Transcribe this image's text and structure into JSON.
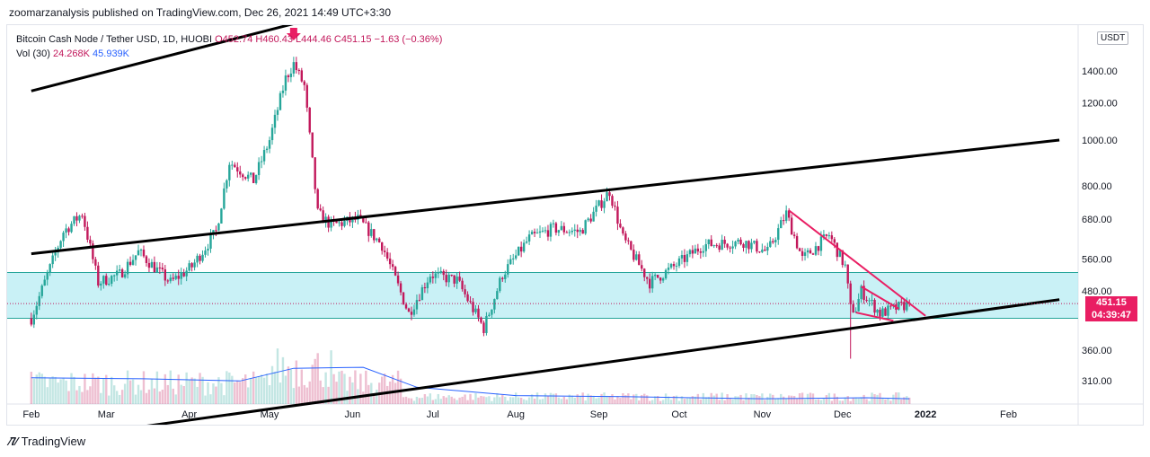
{
  "header": {
    "published": "zoomarzanalysis published on TradingView.com, Dec 26, 2021 14:49 UTC+3:30"
  },
  "legend": {
    "symbol": "Bitcoin Cash Node / Tether USD, 1D, HUOBI",
    "open": "O452.74",
    "high": "H460.43",
    "low": "L444.46",
    "close": "C451.15",
    "change": "−1.63 (−0.36%)",
    "vol_label": "Vol (30)",
    "vol_value": "24.268K",
    "vol_ma": "45.939K"
  },
  "currency": "USDT",
  "last_price": "451.15",
  "countdown": "04:39:47",
  "footer": {
    "brand": "TradingView"
  },
  "colors": {
    "up": "#26a69a",
    "down": "#c2185b",
    "zone": "#b2ebf2",
    "zone_border": "#26a69a",
    "trendline": "#e91e63",
    "vol_ma": "#2962ff",
    "label_bg": "#e91e63"
  },
  "chart_data": {
    "type": "candlestick",
    "symbol": "Bitcoin Cash Node / Tether USD",
    "timeframe": "1D",
    "exchange": "HUOBI",
    "y_scale": "log",
    "y_ticks": [
      "1400.00",
      "1200.00",
      "1000.00",
      "800.00",
      "680.00",
      "560.00",
      "480.00",
      "360.00",
      "310.00"
    ],
    "x_ticks": [
      "Feb",
      "Mar",
      "Apr",
      "May",
      "Jun",
      "Jul",
      "Aug",
      "Sep",
      "Oct",
      "Nov",
      "Dec",
      "2022",
      "Feb"
    ],
    "price_path": [
      {
        "date": "2021-02-01",
        "price": 420
      },
      {
        "date": "2021-02-13",
        "price": 640
      },
      {
        "date": "2021-02-20",
        "price": 700
      },
      {
        "date": "2021-02-26",
        "price": 500
      },
      {
        "date": "2021-03-06",
        "price": 520
      },
      {
        "date": "2021-03-13",
        "price": 580
      },
      {
        "date": "2021-03-25",
        "price": 500
      },
      {
        "date": "2021-04-02",
        "price": 540
      },
      {
        "date": "2021-04-11",
        "price": 640
      },
      {
        "date": "2021-04-16",
        "price": 900
      },
      {
        "date": "2021-04-25",
        "price": 820
      },
      {
        "date": "2021-05-01",
        "price": 1000
      },
      {
        "date": "2021-05-07",
        "price": 1350
      },
      {
        "date": "2021-05-10",
        "price": 1450
      },
      {
        "date": "2021-05-14",
        "price": 1300
      },
      {
        "date": "2021-05-19",
        "price": 700
      },
      {
        "date": "2021-05-24",
        "price": 660
      },
      {
        "date": "2021-06-03",
        "price": 680
      },
      {
        "date": "2021-06-12",
        "price": 600
      },
      {
        "date": "2021-06-22",
        "price": 430
      },
      {
        "date": "2021-06-30",
        "price": 520
      },
      {
        "date": "2021-07-10",
        "price": 505
      },
      {
        "date": "2021-07-20",
        "price": 400
      },
      {
        "date": "2021-07-27",
        "price": 520
      },
      {
        "date": "2021-08-06",
        "price": 620
      },
      {
        "date": "2021-08-15",
        "price": 650
      },
      {
        "date": "2021-08-25",
        "price": 640
      },
      {
        "date": "2021-09-05",
        "price": 780
      },
      {
        "date": "2021-09-10",
        "price": 620
      },
      {
        "date": "2021-09-20",
        "price": 500
      },
      {
        "date": "2021-09-29",
        "price": 540
      },
      {
        "date": "2021-10-10",
        "price": 600
      },
      {
        "date": "2021-10-25",
        "price": 610
      },
      {
        "date": "2021-11-03",
        "price": 580
      },
      {
        "date": "2021-11-10",
        "price": 700
      },
      {
        "date": "2021-11-16",
        "price": 560
      },
      {
        "date": "2021-11-26",
        "price": 630
      },
      {
        "date": "2021-12-02",
        "price": 540
      },
      {
        "date": "2021-12-04",
        "price": 440
      },
      {
        "date": "2021-12-06",
        "price": 440
      },
      {
        "date": "2021-12-08",
        "price": 480
      },
      {
        "date": "2021-12-15",
        "price": 430
      },
      {
        "date": "2021-12-26",
        "price": 451.15
      }
    ],
    "key_extremes": [
      {
        "date": "2021-05-10",
        "label": "high",
        "price": 1500
      },
      {
        "date": "2021-07-20",
        "label": "low",
        "price": 385
      },
      {
        "date": "2021-12-04",
        "label": "wick low",
        "price": 345
      }
    ],
    "annotations": [
      {
        "type": "support-zone",
        "from": 420,
        "to": 525,
        "color": "#b2ebf2"
      },
      {
        "type": "trendline",
        "name": "lower channel",
        "from": {
          "date": "2021-02-01",
          "price": 230
        },
        "to": {
          "date": "2022-02-20",
          "price": 460
        }
      },
      {
        "type": "trendline",
        "name": "middle channel",
        "from": {
          "date": "2021-02-01",
          "price": 575
        },
        "to": {
          "date": "2022-02-20",
          "price": 1000
        }
      },
      {
        "type": "trendline",
        "name": "upper channel",
        "from": {
          "date": "2021-02-01",
          "price": 1270
        },
        "to": {
          "date": "2021-06-20",
          "price": 2020
        }
      },
      {
        "type": "trendline",
        "name": "descending resistance",
        "from": {
          "date": "2021-11-11",
          "price": 710
        },
        "to": {
          "date": "2022-01-01",
          "price": 425
        }
      },
      {
        "type": "trendline",
        "name": "wedge upper",
        "from": {
          "date": "2021-12-08",
          "price": 490
        },
        "to": {
          "date": "2021-12-22",
          "price": 440
        }
      },
      {
        "type": "trendline",
        "name": "wedge lower",
        "from": {
          "date": "2021-12-06",
          "price": 432
        },
        "to": {
          "date": "2021-12-20",
          "price": 415
        }
      },
      {
        "type": "marker",
        "date": "2021-05-10",
        "shape": "down-arrow"
      }
    ],
    "volume_ma_level": [
      {
        "date": "2021-02-01",
        "level": 0.25
      },
      {
        "date": "2021-03-15",
        "level": 0.24
      },
      {
        "date": "2021-04-20",
        "level": 0.22
      },
      {
        "date": "2021-05-10",
        "level": 0.34
      },
      {
        "date": "2021-06-05",
        "level": 0.35
      },
      {
        "date": "2021-06-25",
        "level": 0.16
      },
      {
        "date": "2021-08-01",
        "level": 0.08
      },
      {
        "date": "2021-09-10",
        "level": 0.07
      },
      {
        "date": "2021-11-01",
        "level": 0.05
      },
      {
        "date": "2021-12-10",
        "level": 0.06
      },
      {
        "date": "2021-12-26",
        "level": 0.05
      }
    ]
  }
}
